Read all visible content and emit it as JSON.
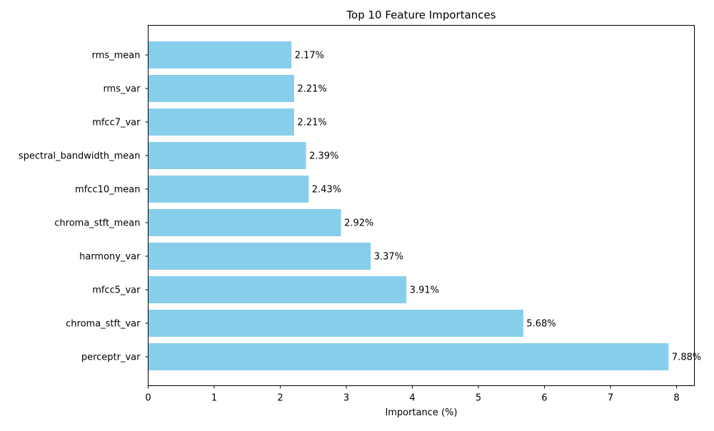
{
  "chart_data": {
    "type": "bar",
    "orientation": "horizontal",
    "title": "Top 10 Feature Importances",
    "xlabel": "Importance (%)",
    "ylabel": "",
    "xlim": [
      0,
      8.27
    ],
    "xticks": [
      0,
      1,
      2,
      3,
      4,
      5,
      6,
      7,
      8
    ],
    "grid": false,
    "bar_color": "#87CEEB",
    "categories": [
      "rms_mean",
      "rms_var",
      "mfcc7_var",
      "spectral_bandwidth_mean",
      "mfcc10_mean",
      "chroma_stft_mean",
      "harmony_var",
      "mfcc5_var",
      "chroma_stft_var",
      "perceptr_var"
    ],
    "values": [
      2.17,
      2.21,
      2.21,
      2.39,
      2.43,
      2.92,
      3.37,
      3.91,
      5.68,
      7.88
    ],
    "value_labels": [
      "2.17%",
      "2.21%",
      "2.21%",
      "2.39%",
      "2.43%",
      "2.92%",
      "3.37%",
      "3.91%",
      "5.68%",
      "7.88%"
    ]
  }
}
